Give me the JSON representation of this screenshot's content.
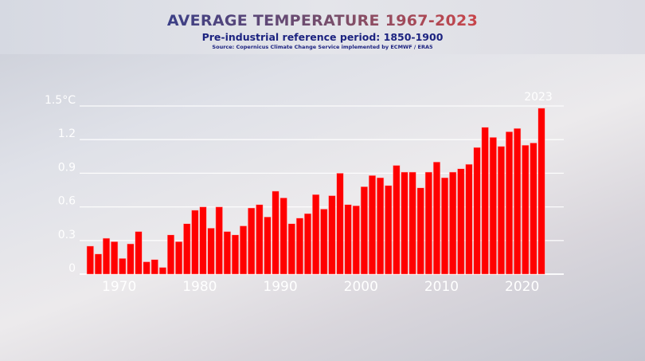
{
  "chart_data": {
    "type": "bar",
    "title": "AVERAGE TEMPERATURE 1967-2023",
    "subtitle": "Pre-industrial reference period: 1850-1900",
    "source": "Source: Copernicus Climate Change Service implemented by ECMWF / ERA5",
    "xlabel": "",
    "ylabel": "",
    "ylim": [
      0,
      1.5
    ],
    "grid": true,
    "y_ticks": [
      {
        "value": 0,
        "label": "0"
      },
      {
        "value": 0.3,
        "label": "0.3"
      },
      {
        "value": 0.6,
        "label": "0.6"
      },
      {
        "value": 0.9,
        "label": "0.9"
      },
      {
        "value": 1.2,
        "label": "1.2"
      },
      {
        "value": 1.5,
        "label": "1.5°C"
      }
    ],
    "x_ticks": [
      {
        "year": 1970,
        "label": "1970"
      },
      {
        "year": 1980,
        "label": "1980"
      },
      {
        "year": 1990,
        "label": "1990"
      },
      {
        "year": 2000,
        "label": "2000"
      },
      {
        "year": 2010,
        "label": "2010"
      },
      {
        "year": 2020,
        "label": "2020"
      }
    ],
    "annotation": {
      "year": 2023,
      "label": "2023"
    },
    "bar_color": "#ff0000",
    "categories": [
      1967,
      1968,
      1969,
      1970,
      1971,
      1972,
      1973,
      1974,
      1975,
      1976,
      1977,
      1978,
      1979,
      1980,
      1981,
      1982,
      1983,
      1984,
      1985,
      1986,
      1987,
      1988,
      1989,
      1990,
      1991,
      1992,
      1993,
      1994,
      1995,
      1996,
      1997,
      1998,
      1999,
      2000,
      2001,
      2002,
      2003,
      2004,
      2005,
      2006,
      2007,
      2008,
      2009,
      2010,
      2011,
      2012,
      2013,
      2014,
      2015,
      2016,
      2017,
      2018,
      2019,
      2020,
      2021,
      2022,
      2023
    ],
    "values": [
      0.25,
      0.18,
      0.32,
      0.29,
      0.14,
      0.27,
      0.38,
      0.11,
      0.13,
      0.06,
      0.35,
      0.29,
      0.45,
      0.57,
      0.6,
      0.41,
      0.6,
      0.38,
      0.35,
      0.43,
      0.59,
      0.62,
      0.51,
      0.74,
      0.68,
      0.45,
      0.5,
      0.54,
      0.71,
      0.58,
      0.7,
      0.9,
      0.62,
      0.61,
      0.78,
      0.88,
      0.86,
      0.79,
      0.97,
      0.91,
      0.91,
      0.77,
      0.91,
      1.0,
      0.86,
      0.91,
      0.94,
      0.98,
      1.13,
      1.31,
      1.22,
      1.14,
      1.27,
      1.3,
      1.15,
      1.17,
      1.48
    ]
  }
}
